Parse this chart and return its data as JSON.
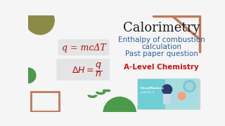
{
  "bg_color": "#f5f5f5",
  "title": "Calorimetry",
  "subtitle_lines": [
    "Enthalpy of combustion",
    "calculation",
    "Past paper question"
  ],
  "alevel_text": "A-Level Chemistry",
  "formula1": "q = mcΔT",
  "title_color": "#1a1a1a",
  "subtitle_color": "#2e5fa3",
  "alevel_color": "#cc1111",
  "formula_color": "#aa1111",
  "formula_bg": "#e4e4e4",
  "decor_circle_color": "#8b8b45",
  "decor_triangle_color": "#c07858",
  "decor_green": "#4a9a4a",
  "decor_rect_color": "#c07858",
  "thumb_bg": "#6ecfd4",
  "thumb_bg2": "#a8dde0",
  "thumb_text_color": "#ffffff",
  "title_fontsize": 13,
  "subtitle_fontsize": 7.5,
  "alevel_fontsize": 7.5,
  "formula1_fontsize": 9,
  "formula2_fontsize": 9
}
